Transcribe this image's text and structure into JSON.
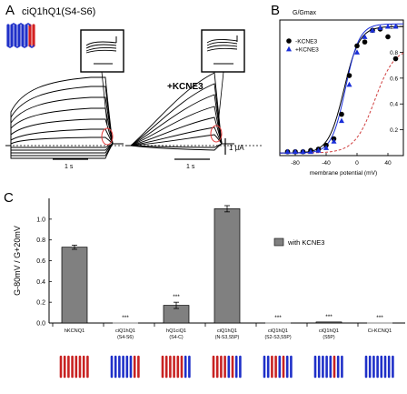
{
  "panel_a": {
    "letter": "A",
    "title": "ciQ1hQ1(S4-S6)",
    "condition_label": "+KCNE3",
    "current_scale": "1 μA",
    "time_scale_left": "1 s",
    "time_scale_right": "1 s"
  },
  "panel_b": {
    "letter": "B",
    "chart_data": {
      "type": "scatter",
      "ylabel": "G/Gmax",
      "xlabel": "membrane potential (mV)",
      "xlim": [
        -100,
        60
      ],
      "ylim": [
        0,
        1.05
      ],
      "xticks": [
        -80,
        -40,
        0,
        40
      ],
      "yticks": [
        0.2,
        0.4,
        0.6,
        0.8,
        1.0
      ],
      "legend_position": "middle-right",
      "series": [
        {
          "name": "-KCNE3",
          "marker": "circle",
          "color": "#000000",
          "x": [
            -90,
            -80,
            -70,
            -60,
            -50,
            -40,
            -30,
            -20,
            -10,
            0,
            10,
            20,
            30,
            40,
            50
          ],
          "y": [
            0.03,
            0.03,
            0.03,
            0.04,
            0.05,
            0.08,
            0.13,
            0.32,
            0.62,
            0.85,
            0.88,
            0.97,
            0.98,
            0.92,
            0.75
          ]
        },
        {
          "name": "+KCNE3",
          "marker": "triangle",
          "color": "#1a2fd8",
          "x": [
            -90,
            -80,
            -70,
            -60,
            -50,
            -40,
            -30,
            -20,
            -10,
            0,
            10,
            20,
            30,
            40,
            50
          ],
          "y": [
            0.03,
            0.03,
            0.03,
            0.03,
            0.04,
            0.06,
            0.11,
            0.27,
            0.55,
            0.8,
            0.92,
            0.97,
            0.99,
            1.0,
            1.0
          ]
        }
      ]
    }
  },
  "panel_c": {
    "letter": "C",
    "chart_data": {
      "type": "bar",
      "ylabel": "G-80mV / G+20mV",
      "ylim": [
        0,
        1.2
      ],
      "yticks": [
        0.0,
        0.2,
        0.4,
        0.6,
        0.8,
        1.0
      ],
      "legend": "with KCNE3",
      "legend_position": "top-right",
      "bar_color": "#808080",
      "categories": [
        [
          "hKCNQ1",
          ""
        ],
        [
          "ciQ1hQ1",
          "(S4-S6)"
        ],
        [
          "hQ1ciQ1",
          "(S4-C)"
        ],
        [
          "ciQ1hQ1",
          "(N-S3,S5P)"
        ],
        [
          "ciQ1hQ1",
          "(S2-S3,S5P)"
        ],
        [
          "ciQ1hQ1",
          "(S5P)"
        ],
        [
          "Ci-KCNQ1",
          ""
        ]
      ],
      "values": [
        0.73,
        0.0,
        0.17,
        1.1,
        0.0,
        0.01,
        0.0
      ],
      "errors": [
        0.02,
        0.0,
        0.03,
        0.03,
        0.0,
        0.0,
        0.0
      ],
      "significance": [
        "",
        "***",
        "***",
        "",
        "***",
        "***",
        "***"
      ]
    }
  }
}
